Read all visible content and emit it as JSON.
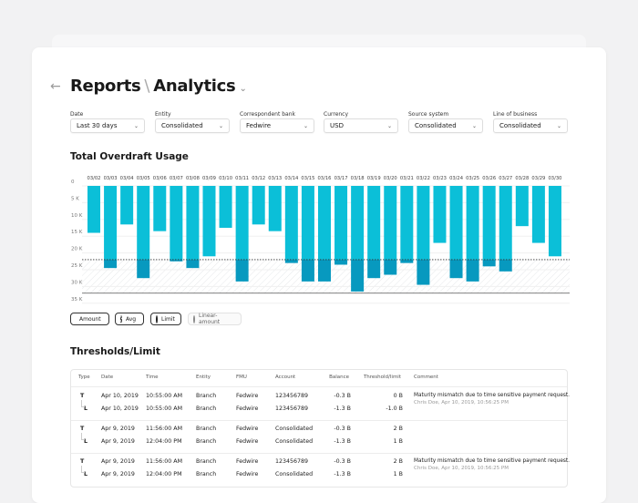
{
  "header": {
    "back_icon": "arrow-left-icon",
    "crumb1": "Reports",
    "separator": "\\",
    "crumb2": "Analytics",
    "dropdown_icon": "chevron-down-icon"
  },
  "filters": [
    {
      "label": "Date",
      "value": "Last 30 days"
    },
    {
      "label": "Entity",
      "value": "Consolidated"
    },
    {
      "label": "Correspondent bank",
      "value": "Fedwire"
    },
    {
      "label": "Currency",
      "value": "USD"
    },
    {
      "label": "Source system",
      "value": "Consolidated"
    },
    {
      "label": "Line of business",
      "value": "Consolidated"
    }
  ],
  "chart_title": "Total Overdraft Usage",
  "chart_data": {
    "type": "bar",
    "categories": [
      "03/02",
      "03/03",
      "03/04",
      "03/05",
      "03/06",
      "03/07",
      "03/08",
      "03/09",
      "03/10",
      "03/11",
      "03/12",
      "03/13",
      "03/14",
      "03/15",
      "03/16",
      "03/17",
      "03/18",
      "03/19",
      "03/20",
      "03/21",
      "03/22",
      "03/23",
      "03/24",
      "03/25",
      "03/26",
      "03/27",
      "03/28",
      "03/29",
      "03/30"
    ],
    "values": [
      14,
      24.5,
      11.5,
      27.5,
      13.5,
      22.5,
      24.5,
      21,
      12.5,
      28.5,
      11.5,
      13.5,
      23,
      28.5,
      28.5,
      23.5,
      31.5,
      27.5,
      26.5,
      23,
      29.5,
      17,
      27.5,
      28.5,
      24,
      25.5,
      12,
      17,
      21
    ],
    "y_ticks": [
      "0",
      "5 K",
      "10 K",
      "15 K",
      "20 K",
      "25 K",
      "30 K",
      "35 K"
    ],
    "ylim": [
      0,
      35
    ],
    "y_inverted": true,
    "limit": 22,
    "floor": 32,
    "grid": true,
    "colors": {
      "amount": "#0bbfd8",
      "over_limit": "#0799bf",
      "limit_line": "#333333"
    }
  },
  "legend": [
    {
      "label": "Amount",
      "active": true
    },
    {
      "label": "Avg",
      "active": true
    },
    {
      "label": "Limit",
      "active": true
    },
    {
      "label": "Linear-amount",
      "active": false
    }
  ],
  "table_title": "Thresholds/Limit",
  "table": {
    "columns": [
      "Type",
      "Date",
      "Time",
      "Entity",
      "FMU",
      "Account",
      "Balance",
      "Threshold/limit",
      "Comment"
    ],
    "groups": [
      {
        "rows": [
          [
            "T",
            "Apr 10, 2019",
            "10:55:00 AM",
            "Branch",
            "Fedwire",
            "123456789",
            "-0.3 B",
            "0 B"
          ],
          [
            "L",
            "Apr 10, 2019",
            "10:55:00 AM",
            "Branch",
            "Fedwire",
            "123456789",
            "-1.3 B",
            "-1.0 B"
          ]
        ],
        "comment": "Maturity mismatch due to time sensitive payment request.",
        "comment_by": "Chris Doe, Apr 10, 2019, 10:56:25 PM"
      },
      {
        "rows": [
          [
            "T",
            "Apr 9, 2019",
            "11:56:00 AM",
            "Branch",
            "Fedwire",
            "Consolidated",
            "-0.3 B",
            "2 B"
          ],
          [
            "L",
            "Apr 9, 2019",
            "12:04:00 PM",
            "Branch",
            "Fedwire",
            "Consolidated",
            "-1.3 B",
            "1 B"
          ]
        ],
        "comment": "",
        "comment_by": ""
      },
      {
        "rows": [
          [
            "T",
            "Apr 9, 2019",
            "11:56:00 AM",
            "Branch",
            "Fedwire",
            "123456789",
            "-0.3 B",
            "2 B"
          ],
          [
            "L",
            "Apr 9, 2019",
            "12:04:00 PM",
            "Branch",
            "Fedwire",
            "Consolidated",
            "-1.3 B",
            "1 B"
          ]
        ],
        "comment": "Maturity mismatch due to time sensitive payment request.",
        "comment_by": "Chris Doe, Apr 10, 2019, 10:56:25 PM"
      }
    ]
  }
}
